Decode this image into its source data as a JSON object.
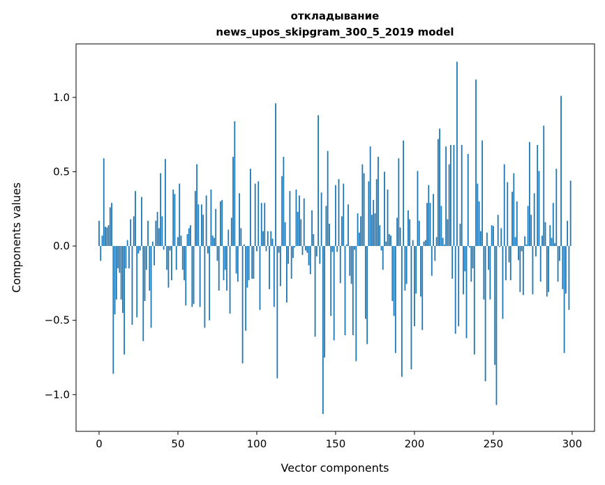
{
  "chart_data": {
    "type": "bar",
    "title_line1": "откладывание",
    "title_line2": "news_upos_skipgram_300_5_2019 model",
    "xlabel": "Vector components",
    "ylabel": "Components values",
    "xlim": [
      -14.6,
      314.2
    ],
    "ylim": [
      -1.247,
      1.36
    ],
    "xticks": [
      0,
      50,
      100,
      150,
      200,
      250,
      300
    ],
    "xtick_labels": [
      "0",
      "50",
      "100",
      "150",
      "200",
      "250",
      "300"
    ],
    "yticks": [
      -1.0,
      -0.5,
      0.0,
      0.5,
      1.0
    ],
    "ytick_labels": [
      "−1.0",
      "−0.5",
      "0.0",
      "0.5",
      "1.0"
    ],
    "grid": false,
    "bar_color": "#1f77b4",
    "values": [
      0.17,
      -0.1,
      0.07,
      0.59,
      0.13,
      0.125,
      0.14,
      0.26,
      0.29,
      -0.86,
      -0.46,
      -0.36,
      -0.15,
      -0.18,
      -0.36,
      -0.45,
      -0.73,
      -0.15,
      0.04,
      -0.15,
      0.18,
      -0.53,
      0.2,
      0.37,
      -0.48,
      -0.05,
      -0.03,
      0.33,
      -0.64,
      -0.37,
      -0.16,
      0.17,
      -0.3,
      -0.55,
      0.03,
      -0.13,
      0.17,
      0.23,
      0.12,
      0.49,
      0.2,
      -0.025,
      0.585,
      -0.16,
      -0.28,
      -0.03,
      -0.23,
      0.38,
      0.35,
      -0.16,
      0.06,
      0.42,
      0.07,
      -0.16,
      -0.23,
      -0.4,
      0.08,
      0.12,
      0.14,
      -0.41,
      -0.39,
      0.37,
      0.55,
      0.28,
      -0.41,
      0.28,
      0.21,
      -0.55,
      0.34,
      -0.05,
      -0.5,
      0.38,
      0.07,
      0.055,
      0.25,
      -0.1,
      -0.3,
      0.3,
      0.31,
      -0.23,
      -0.16,
      -0.3,
      0.11,
      -0.455,
      0.19,
      0.6,
      0.84,
      -0.185,
      -0.24,
      0.355,
      0.12,
      -0.79,
      0.01,
      -0.57,
      -0.28,
      -0.23,
      0.52,
      -0.22,
      -0.22,
      0.42,
      -0.035,
      0.435,
      -0.43,
      0.29,
      0.1,
      0.29,
      -0.035,
      0.1,
      -0.29,
      0.1,
      0.05,
      -0.41,
      0.96,
      -0.89,
      -0.045,
      -0.27,
      0.47,
      0.6,
      0.16,
      -0.38,
      -0.12,
      0.37,
      -0.22,
      -0.08,
      -0.01,
      0.38,
      0.23,
      0.34,
      0.18,
      -0.06,
      0.32,
      -0.03,
      -0.045,
      -0.13,
      -0.19,
      0.24,
      0.08,
      -0.61,
      -0.07,
      0.88,
      -0.12,
      0.36,
      -1.13,
      -0.75,
      0.27,
      0.64,
      0.15,
      -0.47,
      -0.04,
      -0.635,
      0.41,
      -0.04,
      0.45,
      -0.25,
      0.2,
      0.42,
      -0.6,
      0.01,
      0.28,
      -0.2,
      -0.255,
      -0.6,
      -0.025,
      -0.775,
      0.22,
      0.09,
      0.2,
      0.55,
      0.49,
      -0.49,
      -0.66,
      0.435,
      0.67,
      0.21,
      0.31,
      0.22,
      0.45,
      0.6,
      0.14,
      -0.03,
      -0.16,
      0.5,
      0.03,
      0.38,
      0.08,
      0.07,
      -0.37,
      -0.47,
      -0.72,
      0.19,
      0.59,
      0.125,
      -0.88,
      0.71,
      -0.3,
      -0.255,
      0.24,
      0.18,
      -0.83,
      0.04,
      -0.54,
      -0.32,
      0.505,
      0.17,
      -0.34,
      -0.565,
      0.03,
      0.04,
      0.29,
      0.41,
      0.29,
      -0.2,
      0.35,
      -0.1,
      0.06,
      0.72,
      0.79,
      0.27,
      0.055,
      0.01,
      0.67,
      0.18,
      0.55,
      0.68,
      -0.22,
      0.68,
      -0.59,
      1.24,
      -0.54,
      0.15,
      0.68,
      -0.325,
      -0.17,
      -0.62,
      0.62,
      -0.01,
      -0.24,
      -0.15,
      -0.73,
      1.12,
      0.42,
      0.3,
      0.1,
      0.71,
      -0.36,
      -0.91,
      0.09,
      -0.16,
      -0.36,
      0.14,
      0.135,
      -0.8,
      -1.07,
      0.21,
      -0.006,
      0.12,
      -0.49,
      0.55,
      -0.23,
      0.43,
      -0.11,
      -0.23,
      0.365,
      0.49,
      0.06,
      0.3,
      -0.095,
      -0.31,
      -0.035,
      -0.33,
      0.065,
      0.01,
      0.27,
      0.7,
      0.21,
      -0.325,
      0.355,
      -0.07,
      0.68,
      0.505,
      -0.24,
      0.07,
      0.81,
      0.16,
      -0.34,
      -0.31,
      0.14,
      0.055,
      0.29,
      0.02,
      0.52,
      -0.24,
      -0.1,
      1.01,
      -0.29,
      -0.72,
      -0.32,
      0.17,
      -0.43,
      0.44
    ]
  }
}
